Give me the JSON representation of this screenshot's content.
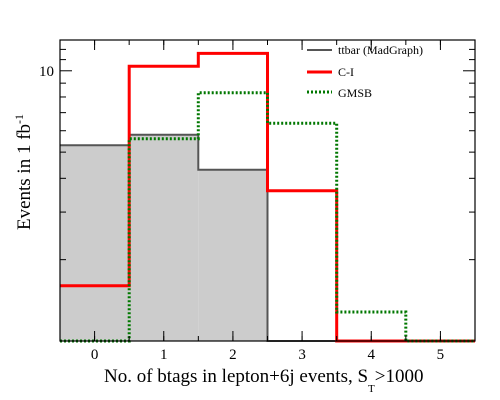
{
  "chart_data": {
    "type": "histogram",
    "xlabel": "No. of btags in lepton+6j events, S",
    "xlabel_sub": "T",
    "xlabel_suffix": ">1000",
    "ylabel": "Events in 1 fb",
    "ylabel_sup": "-1",
    "y_scale": "log",
    "x_range": [
      -0.5,
      5.5
    ],
    "y_range": [
      1.0,
      13.0
    ],
    "x_ticks": [
      "0",
      "1",
      "2",
      "3",
      "4",
      "5"
    ],
    "y_tick_labels": [
      {
        "value": 10,
        "label": "10"
      }
    ],
    "legend_position": "top-right",
    "bins": [
      0,
      1,
      2,
      3,
      4,
      5
    ],
    "series": [
      {
        "name": "ttbar (MadGraph)",
        "style": "filled-gray",
        "color": "#555555",
        "fill": "#cccccc",
        "values": [
          5.3,
          5.8,
          4.3,
          0,
          0,
          0
        ]
      },
      {
        "name": "C-I",
        "style": "solid-red",
        "color": "#ff0000",
        "values": [
          1.6,
          10.4,
          11.6,
          3.6,
          0,
          0
        ]
      },
      {
        "name": "GMSB",
        "style": "dotted-green",
        "color": "#007700",
        "values": [
          0,
          5.6,
          8.3,
          6.4,
          1.28,
          0
        ]
      }
    ]
  }
}
